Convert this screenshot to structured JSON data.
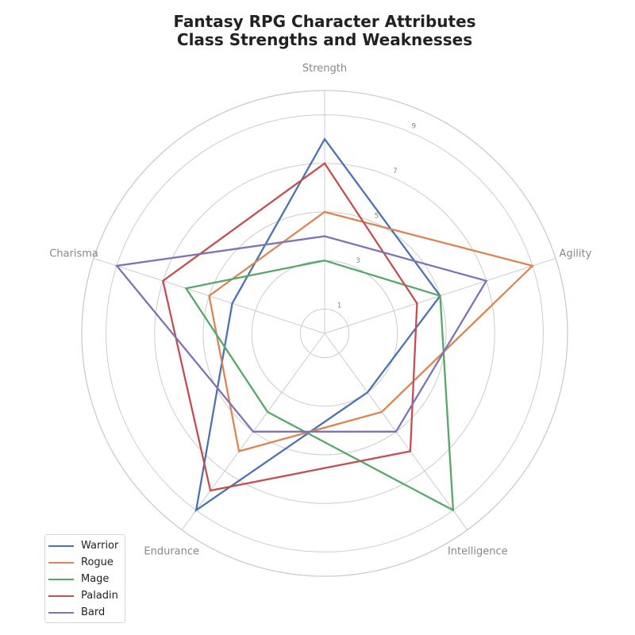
{
  "chart_data": {
    "type": "radar",
    "title": "Fantasy RPG Character Attributes",
    "subtitle": "Class Strengths and Weaknesses",
    "categories": [
      "Strength",
      "Agility",
      "Intelligence",
      "Endurance",
      "Charisma"
    ],
    "r_ticks": [
      "1",
      "3",
      "5",
      "7",
      "9"
    ],
    "r_range": [
      0,
      10
    ],
    "grid": true,
    "legend_position": "bottom-left",
    "series": [
      {
        "name": "Warrior",
        "color": "#4c72b0",
        "values": [
          8,
          5,
          3,
          9,
          4
        ]
      },
      {
        "name": "Rogue",
        "color": "#dd8452",
        "values": [
          5,
          9,
          4,
          6,
          5
        ]
      },
      {
        "name": "Mage",
        "color": "#55a868",
        "values": [
          3,
          5,
          9,
          4,
          6
        ]
      },
      {
        "name": "Paladin",
        "color": "#c44e52",
        "values": [
          7,
          4,
          6,
          8,
          7
        ]
      },
      {
        "name": "Bard",
        "color": "#8172b3",
        "values": [
          4,
          7,
          5,
          5,
          9
        ]
      }
    ]
  }
}
